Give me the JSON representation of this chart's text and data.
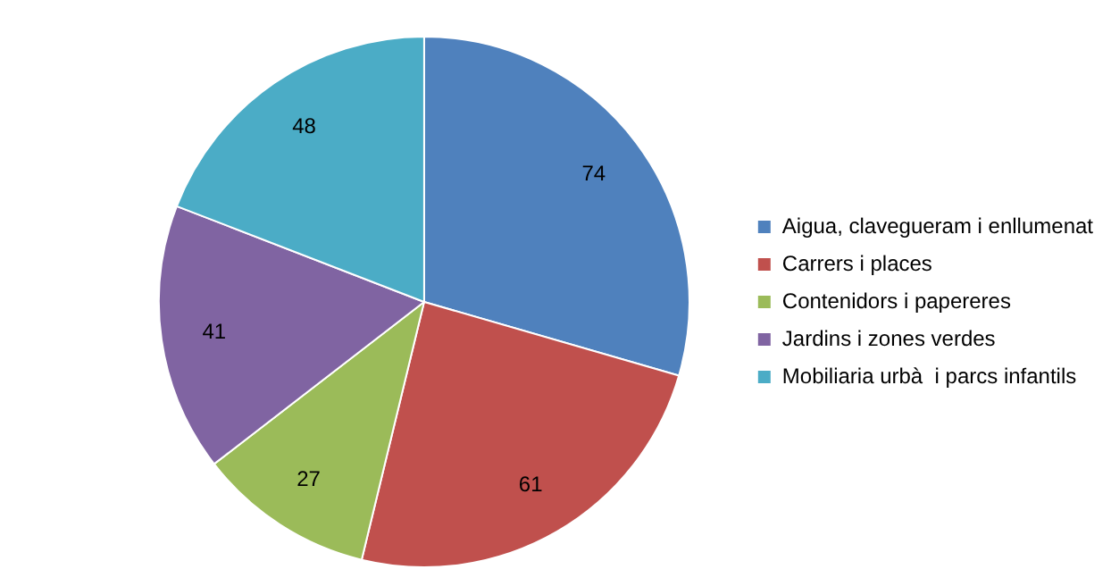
{
  "chart_data": {
    "type": "pie",
    "categories": [
      "Aigua, clavegueram i enllumenat",
      "Carrers i places",
      "Contenidors i papereres",
      "Jardins i zones verdes",
      "Mobiliaria urbà  i parcs infantils"
    ],
    "values": [
      74,
      61,
      27,
      41,
      48
    ],
    "colors": [
      "#4f81bd",
      "#c0504d",
      "#9bbb59",
      "#8064a2",
      "#4bacc6"
    ],
    "data_labels": true,
    "legend": "right"
  }
}
